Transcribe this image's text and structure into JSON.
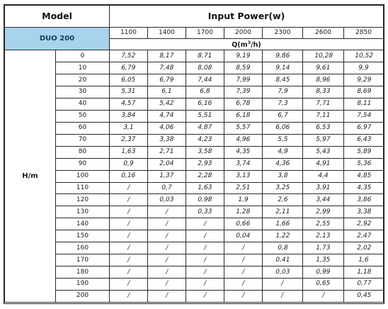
{
  "headers": {
    "model": "Model",
    "input_power": "Input Power(w)",
    "model_name": "DUO 200",
    "flow_prefix": "Q(m",
    "flow_exp": "3",
    "flow_suffix": "/h)",
    "head_label": "H/m"
  },
  "powers": [
    "1100",
    "1400",
    "1700",
    "2000",
    "2300",
    "2600",
    "2850"
  ],
  "rows": [
    {
      "h": "0",
      "q": [
        "7,52",
        "8,17",
        "8,71",
        "9,19",
        "9,86",
        "10,28",
        "10,52"
      ]
    },
    {
      "h": "10",
      "q": [
        "6,79",
        "7,48",
        "8,08",
        "8,59",
        "9,14",
        "9,61",
        "9,9"
      ]
    },
    {
      "h": "20",
      "q": [
        "6,05",
        "6,79",
        "7,44",
        "7,99",
        "8,45",
        "8,96",
        "9,29"
      ]
    },
    {
      "h": "30",
      "q": [
        "5,31",
        "6,1",
        "6,8",
        "7,39",
        "7,9",
        "8,33",
        "8,69"
      ]
    },
    {
      "h": "40",
      "q": [
        "4,57",
        "5,42",
        "6,16",
        "6,78",
        "7,3",
        "7,71",
        "8,11"
      ]
    },
    {
      "h": "50",
      "q": [
        "3,84",
        "4,74",
        "5,51",
        "6,18",
        "6,7",
        "7,11",
        "7,54"
      ]
    },
    {
      "h": "60",
      "q": [
        "3,1",
        "4,06",
        "4,87",
        "5,57",
        "6,06",
        "6,53",
        "6,97"
      ]
    },
    {
      "h": "70",
      "q": [
        "2,37",
        "3,38",
        "4,23",
        "4,96",
        "5,5",
        "5,97",
        "6,43"
      ]
    },
    {
      "h": "80",
      "q": [
        "1,63",
        "2,71",
        "3,58",
        "4,35",
        "4,9",
        "5,43",
        "5,89"
      ]
    },
    {
      "h": "90",
      "q": [
        "0,9",
        "2,04",
        "2,93",
        "3,74",
        "4,36",
        "4,91",
        "5,36"
      ]
    },
    {
      "h": "100",
      "q": [
        "0,16",
        "1,37",
        "2,28",
        "3,13",
        "3,8",
        "4,4",
        "4,85"
      ]
    },
    {
      "h": "110",
      "q": [
        "/",
        "0,7",
        "1,63",
        "2,51",
        "3,25",
        "3,91",
        "4,35"
      ]
    },
    {
      "h": "120",
      "q": [
        "/",
        "0,03",
        "0,98",
        "1,9",
        "2,6",
        "3,44",
        "3,86"
      ]
    },
    {
      "h": "130",
      "q": [
        "/",
        "/",
        "0,33",
        "1,28",
        "2,11",
        "2,99",
        "3,38"
      ]
    },
    {
      "h": "140",
      "q": [
        "/",
        "/",
        "/",
        "0,66",
        "1,66",
        "2,55",
        "2,92"
      ]
    },
    {
      "h": "150",
      "q": [
        "/",
        "/",
        "/",
        "0,04",
        "1,22",
        "2,13",
        "2,47"
      ]
    },
    {
      "h": "160",
      "q": [
        "/",
        "/",
        "/",
        "/",
        "0,8",
        "1,73",
        "2,02"
      ]
    },
    {
      "h": "170",
      "q": [
        "/",
        "/",
        "/",
        "/",
        "0,41",
        "1,35",
        "1,6"
      ]
    },
    {
      "h": "180",
      "q": [
        "/",
        "/",
        "/",
        "/",
        "0,03",
        "0,99",
        "1,18"
      ]
    },
    {
      "h": "190",
      "q": [
        "/",
        "/",
        "/",
        "/",
        "/",
        "0,65",
        "0,77"
      ]
    },
    {
      "h": "200",
      "q": [
        "/",
        "/",
        "/",
        "/",
        "/",
        "/",
        "0,45"
      ]
    }
  ]
}
